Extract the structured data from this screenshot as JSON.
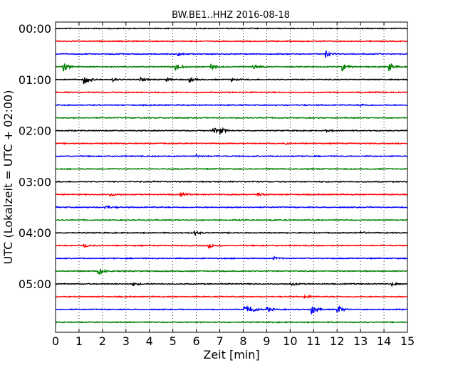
{
  "chart_data": {
    "type": "line",
    "title": "BW.BE1..HHZ 2016-08-18",
    "xlabel": "Zeit  [min]",
    "ylabel": "UTC (Lokalzeit = UTC + 02:00)",
    "xlim": [
      0,
      15
    ],
    "x_ticks": [
      "0",
      "1",
      "2",
      "3",
      "4",
      "5",
      "6",
      "7",
      "8",
      "9",
      "10",
      "11",
      "12",
      "13",
      "14",
      "15"
    ],
    "y_ticks": [
      "00:00",
      "01:00",
      "02:00",
      "03:00",
      "04:00",
      "05:00"
    ],
    "grid": "vertical dotted at each minute",
    "colors": [
      "#000000",
      "#ff0000",
      "#0000ff",
      "#008000"
    ],
    "series": [
      {
        "start": "00:00",
        "events": []
      },
      {
        "start": "00:15",
        "events": []
      },
      {
        "start": "00:30",
        "events": [
          {
            "t": 5.2,
            "amp": 0.25
          },
          {
            "t": 11.5,
            "amp": 0.55
          }
        ]
      },
      {
        "start": "00:45",
        "events": [
          {
            "t": 0.3,
            "amp": 0.9
          },
          {
            "t": 5.1,
            "amp": 0.7
          },
          {
            "t": 6.6,
            "amp": 0.5
          },
          {
            "t": 8.4,
            "amp": 0.55
          },
          {
            "t": 12.2,
            "amp": 0.65
          },
          {
            "t": 14.2,
            "amp": 0.7
          }
        ]
      },
      {
        "start": "01:00",
        "events": [
          {
            "t": 1.2,
            "amp": 0.9
          },
          {
            "t": 2.4,
            "amp": 0.3
          },
          {
            "t": 3.6,
            "amp": 0.3
          },
          {
            "t": 4.7,
            "amp": 0.25
          },
          {
            "t": 5.7,
            "amp": 0.35
          },
          {
            "t": 7.5,
            "amp": 0.3
          }
        ]
      },
      {
        "start": "01:15",
        "events": []
      },
      {
        "start": "01:30",
        "events": [
          {
            "t": 13.0,
            "amp": 0.15
          }
        ]
      },
      {
        "start": "01:45",
        "events": []
      },
      {
        "start": "02:00",
        "events": [
          {
            "t": 6.7,
            "amp": 0.6
          },
          {
            "t": 7.0,
            "amp": 0.5
          },
          {
            "t": 11.5,
            "amp": 0.15
          }
        ]
      },
      {
        "start": "02:15",
        "events": [
          {
            "t": 9.8,
            "amp": 0.15
          }
        ]
      },
      {
        "start": "02:30",
        "events": [
          {
            "t": 6.0,
            "amp": 0.2
          }
        ]
      },
      {
        "start": "02:45",
        "events": []
      },
      {
        "start": "03:00",
        "events": [
          {
            "t": 4.2,
            "amp": 0.1
          }
        ]
      },
      {
        "start": "03:15",
        "events": [
          {
            "t": 2.3,
            "amp": 0.35
          },
          {
            "t": 5.3,
            "amp": 0.35
          },
          {
            "t": 8.6,
            "amp": 0.3
          }
        ]
      },
      {
        "start": "03:30",
        "events": [
          {
            "t": 2.1,
            "amp": 0.3
          }
        ]
      },
      {
        "start": "03:45",
        "events": [
          {
            "t": 9.2,
            "amp": 0.1
          }
        ]
      },
      {
        "start": "04:00",
        "events": [
          {
            "t": 5.9,
            "amp": 0.4
          },
          {
            "t": 13.0,
            "amp": 0.25
          }
        ]
      },
      {
        "start": "04:15",
        "events": [
          {
            "t": 1.2,
            "amp": 0.3
          },
          {
            "t": 6.5,
            "amp": 0.35
          }
        ]
      },
      {
        "start": "04:30",
        "events": [
          {
            "t": 9.3,
            "amp": 0.2
          }
        ]
      },
      {
        "start": "04:45",
        "events": [
          {
            "t": 1.8,
            "amp": 0.8
          }
        ]
      },
      {
        "start": "05:00",
        "events": [
          {
            "t": 3.3,
            "amp": 0.3
          },
          {
            "t": 10.0,
            "amp": 0.3
          },
          {
            "t": 14.3,
            "amp": 0.25
          }
        ]
      },
      {
        "start": "05:15",
        "events": [
          {
            "t": 10.6,
            "amp": 0.3
          }
        ]
      },
      {
        "start": "05:30",
        "events": [
          {
            "t": 8.0,
            "amp": 0.75
          },
          {
            "t": 8.3,
            "amp": 0.6
          },
          {
            "t": 9.0,
            "amp": 0.45
          },
          {
            "t": 10.9,
            "amp": 1.0
          },
          {
            "t": 12.0,
            "amp": 0.75
          }
        ]
      },
      {
        "start": "05:45",
        "events": []
      }
    ]
  }
}
